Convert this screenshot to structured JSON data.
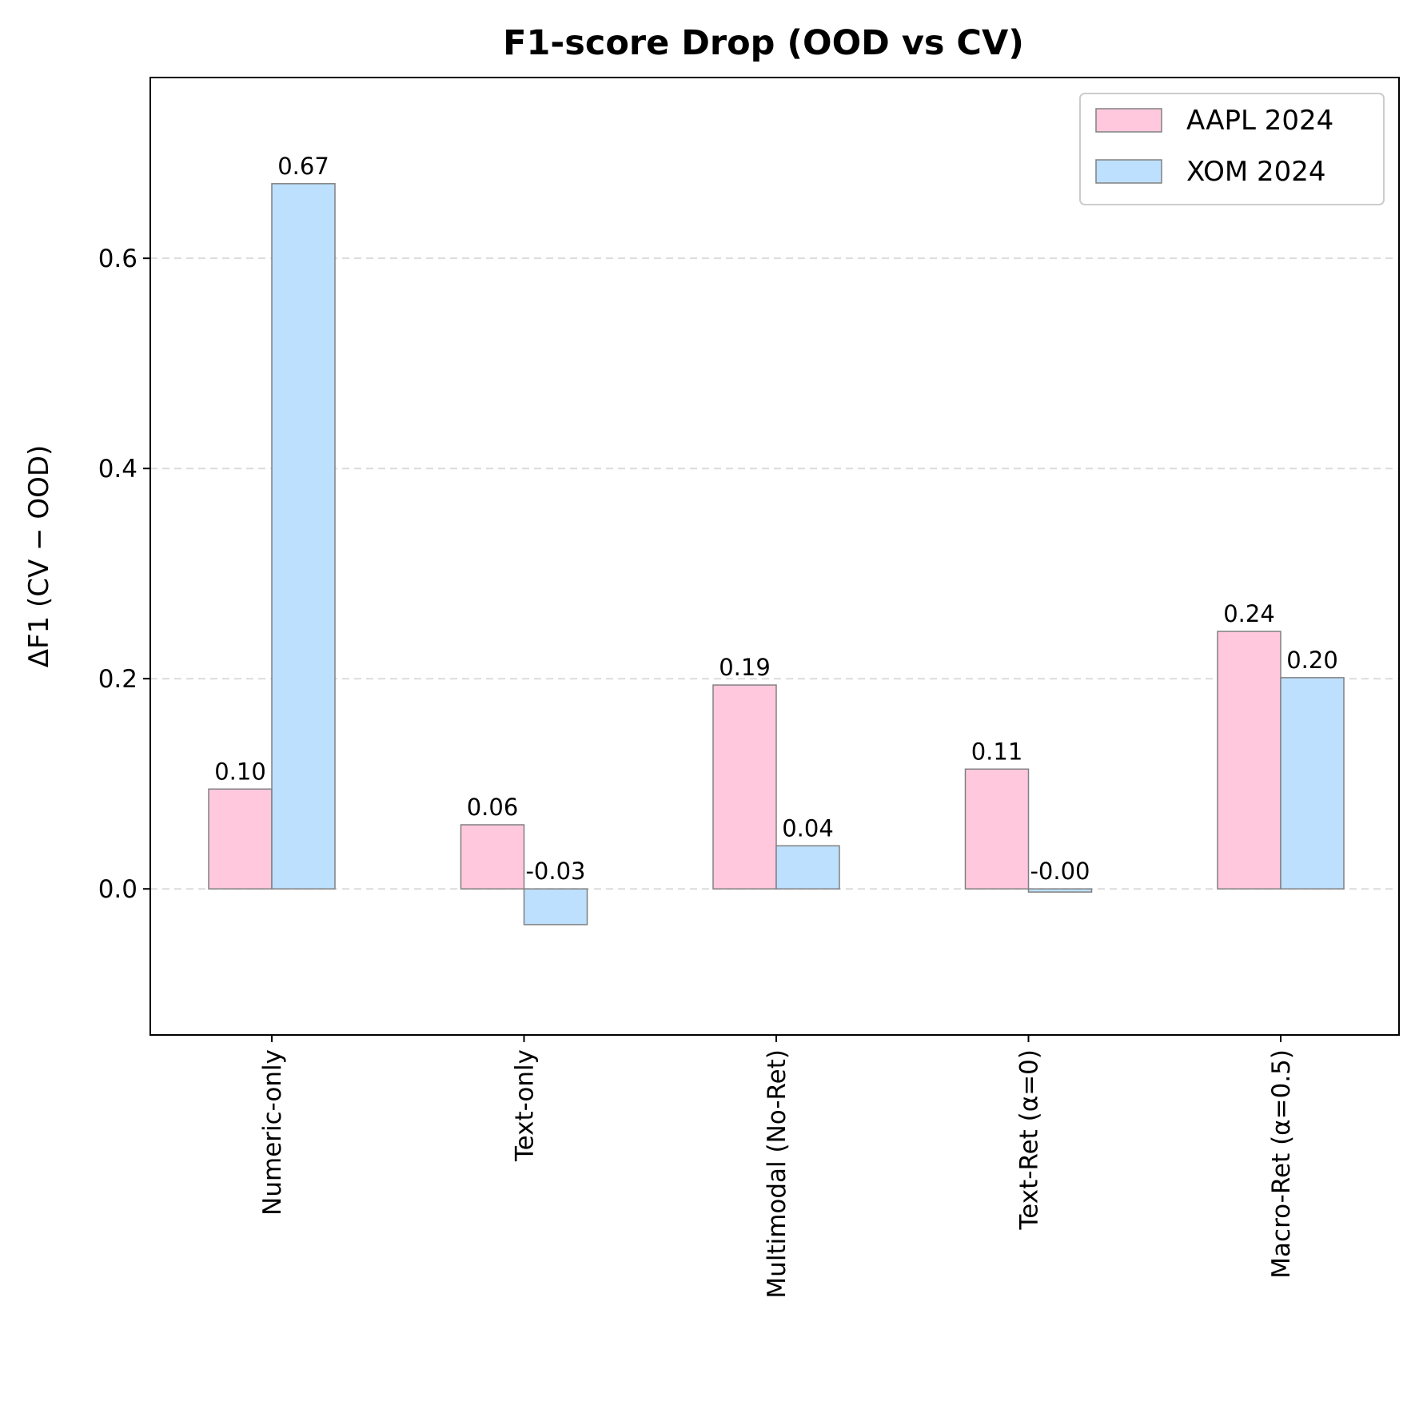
{
  "chart_data": {
    "type": "bar",
    "title": "F1-score Drop (OOD vs CV)",
    "xlabel": "",
    "ylabel": "ΔF1 (CV − OOD)",
    "categories": [
      "Numeric-only",
      "Text-only",
      "Multimodal (No-Ret)",
      "Text-Ret (α=0)",
      "Macro-Ret (α=0.5)"
    ],
    "series": [
      {
        "name": "AAPL 2024",
        "color": "#ffc8dd",
        "values": [
          0.095,
          0.061,
          0.194,
          0.114,
          0.245
        ],
        "labels": [
          "0.10",
          "0.06",
          "0.19",
          "0.11",
          "0.24"
        ]
      },
      {
        "name": "XOM 2024",
        "color": "#bde0fe",
        "values": [
          0.671,
          -0.034,
          0.041,
          -0.003,
          0.201
        ],
        "labels": [
          "0.67",
          "-0.03",
          "0.04",
          "-0.00",
          "0.20"
        ]
      }
    ],
    "yticks": [
      0.0,
      0.2,
      0.4,
      0.6
    ],
    "ytick_labels": [
      "0.0",
      "0.2",
      "0.4",
      "0.6"
    ],
    "ylim": [
      -0.139,
      0.772
    ],
    "grid": "y, dashed",
    "legend": "top-right",
    "bar_edge_color": "#808080"
  }
}
